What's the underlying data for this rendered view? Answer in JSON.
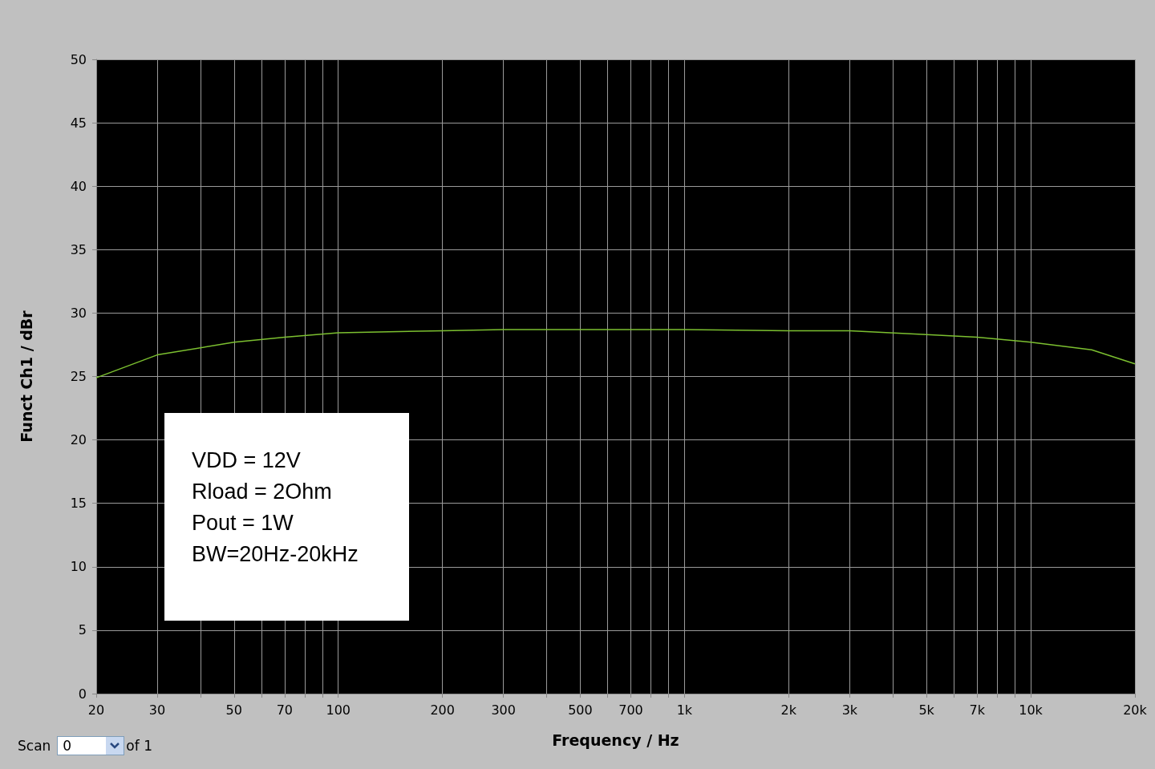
{
  "chart_data": {
    "type": "line",
    "xlabel": "Frequency / Hz",
    "ylabel": "Funct Ch1 / dBr",
    "x": [
      20,
      30,
      50,
      70,
      100,
      200,
      300,
      1000,
      2000,
      3000,
      5000,
      7000,
      10000,
      15000,
      20000
    ],
    "series": [
      {
        "color": "#7cc030",
        "values": [
          24.9,
          26.7,
          27.7,
          28.1,
          28.45,
          28.6,
          28.7,
          28.7,
          28.6,
          28.6,
          28.3,
          28.1,
          27.7,
          27.1,
          26.0
        ]
      }
    ],
    "log": "x",
    "xlim": [
      20,
      20000
    ],
    "xticks": [
      20,
      30,
      {
        "value": 40,
        "label": null
      },
      50,
      {
        "value": 60,
        "label": null
      },
      70,
      {
        "value": 80,
        "label": null
      },
      {
        "value": 90,
        "label": null
      },
      100,
      200,
      300,
      {
        "value": 400,
        "label": null
      },
      500,
      {
        "value": 600,
        "label": null
      },
      700,
      {
        "value": 800,
        "label": null
      },
      {
        "value": 900,
        "label": null
      },
      {
        "value": 1000,
        "label": "1k"
      },
      {
        "value": 2000,
        "label": "2k"
      },
      {
        "value": 3000,
        "label": "3k"
      },
      {
        "value": 4000,
        "label": null
      },
      {
        "value": 5000,
        "label": "5k"
      },
      {
        "value": 6000,
        "label": null
      },
      {
        "value": 7000,
        "label": "7k"
      },
      {
        "value": 8000,
        "label": null
      },
      {
        "value": 9000,
        "label": null
      },
      {
        "value": 10000,
        "label": "10k"
      },
      {
        "value": 20000,
        "label": "20k"
      }
    ],
    "ylim": [
      0,
      50
    ],
    "yticks": [
      0,
      5,
      10,
      15,
      20,
      25,
      30,
      35,
      40,
      45,
      50
    ],
    "grid": true,
    "marker": "none",
    "line_style": "solid",
    "annotations": [
      "VDD = 12V",
      "Rload = 2Ohm",
      "Pout = 1W",
      "BW=20Hz-20kHz",
      "Scan",
      "0",
      "of 1"
    ]
  }
}
